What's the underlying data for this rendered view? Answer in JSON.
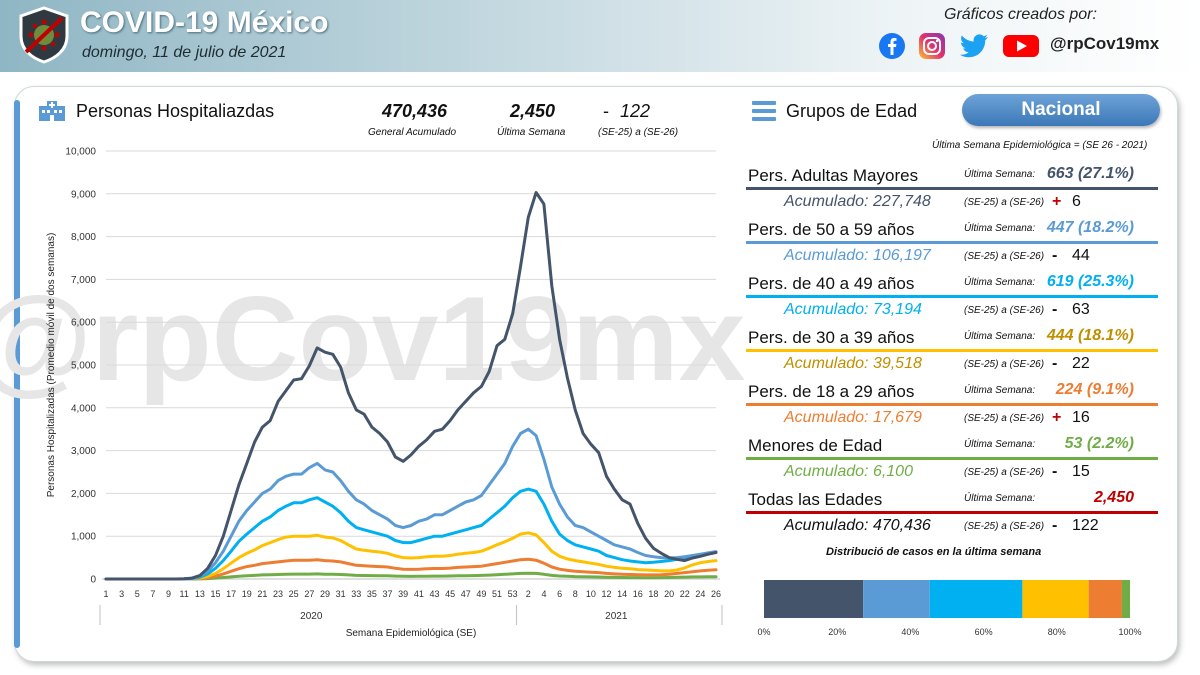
{
  "header": {
    "title": "COVID-19 México",
    "date": "domingo, 11 de julio de 2021",
    "credits_label": "Gráficos creados por:",
    "handle": "@rpCov19mx",
    "social_icons": [
      "facebook-icon",
      "instagram-icon",
      "twitter-icon",
      "youtube-icon"
    ]
  },
  "hospital_panel": {
    "title": "Personas Hospitaliazdas",
    "cumulative_value": "470,436",
    "cumulative_label": "General Acumulado",
    "last_week_value": "2,450",
    "last_week_label": "Última Semana",
    "change_dash": "-",
    "change_value": "122",
    "change_label": "(SE-25) a (SE-26)"
  },
  "groups_panel": {
    "title": "Grupos de Edad",
    "scope_button": "Nacional",
    "week_note": "Última Semana Epidemiológica = (SE 26 - 2021)",
    "distribution_title": "Distribució de casos en la última semana",
    "groups": [
      {
        "name": "Pers. Adultas Mayores",
        "last_week_label": "Última Semana:",
        "last_week": "663 (27.1%)",
        "accum": "Acumulado: 227,748",
        "compare_label": "(SE-25) a (SE-26)",
        "sign": "+",
        "diff": "6",
        "color": "#44546a",
        "text_color": "#44546a",
        "sign_color": "#c00000"
      },
      {
        "name": "Pers. de 50 a 59 años",
        "last_week_label": "Última Semana:",
        "last_week": "447 (18.2%)",
        "accum": "Acumulado: 106,197",
        "compare_label": "(SE-25) a (SE-26)",
        "sign": "-",
        "diff": "44",
        "color": "#5b9bd5",
        "text_color": "#5b9bd5",
        "sign_color": "#111111"
      },
      {
        "name": "Pers. de 40 a 49 años",
        "last_week_label": "Última Semana:",
        "last_week": "619 (25.3%)",
        "accum": "Acumulado: 73,194",
        "compare_label": "(SE-25) a (SE-26)",
        "sign": "-",
        "diff": "63",
        "color": "#00b0f0",
        "text_color": "#00b0f0",
        "sign_color": "#111111"
      },
      {
        "name": "Pers. de 30 a 39 años",
        "last_week_label": "Última Semana:",
        "last_week": "444 (18.1%)",
        "accum": "Acumulado: 39,518",
        "compare_label": "(SE-25) a (SE-26)",
        "sign": "-",
        "diff": "22",
        "color": "#ffc000",
        "text_color": "#bf8f00",
        "sign_color": "#111111"
      },
      {
        "name": "Pers. de 18 a 29 años",
        "last_week_label": "Última Semana:",
        "last_week": "224 (9.1%)",
        "accum": "Acumulado: 17,679",
        "compare_label": "(SE-25) a (SE-26)",
        "sign": "+",
        "diff": "16",
        "color": "#ed7d31",
        "text_color": "#ed7d31",
        "sign_color": "#c00000"
      },
      {
        "name": "Menores de Edad",
        "last_week_label": "Última Semana:",
        "last_week": "53 (2.2%)",
        "accum": "Acumulado: 6,100",
        "compare_label": "(SE-25) a (SE-26)",
        "sign": "-",
        "diff": "15",
        "color": "#70ad47",
        "text_color": "#70ad47",
        "sign_color": "#111111"
      },
      {
        "name": "Todas las Edades",
        "last_week_label": "Última Semana:",
        "last_week": "2,450",
        "accum": "Acumulado: 470,436",
        "compare_label": "(SE-25) a (SE-26)",
        "sign": "-",
        "diff": "122",
        "color": "#c00000",
        "text_color": "#c00000",
        "sign_color": "#111111"
      }
    ]
  },
  "watermark": "@rpCov19mx",
  "chart_data": [
    {
      "type": "line",
      "title": "",
      "xlabel": "Semana Epidemiológica (SE)",
      "ylabel": "Personas Hospitalizadas (Promedio móvil de dos semanas)",
      "ylim": [
        0,
        10000
      ],
      "yticks": [
        0,
        1000,
        2000,
        3000,
        4000,
        5000,
        6000,
        7000,
        8000,
        9000,
        10000
      ],
      "ytick_labels": [
        "0",
        "1,000",
        "2,000",
        "3,000",
        "4,000",
        "5,000",
        "6,000",
        "7,000",
        "8,000",
        "9,000",
        "10,000"
      ],
      "year_groups": [
        {
          "label": "2020",
          "weeks": 53
        },
        {
          "label": "2021",
          "weeks": 26
        }
      ],
      "tick_labels": [
        "1",
        "3",
        "5",
        "7",
        "9",
        "11",
        "13",
        "15",
        "17",
        "19",
        "21",
        "23",
        "25",
        "27",
        "29",
        "31",
        "33",
        "35",
        "37",
        "39",
        "41",
        "43",
        "45",
        "47",
        "49",
        "51",
        "53",
        "2",
        "4",
        "6",
        "8",
        "10",
        "12",
        "14",
        "16",
        "18",
        "20",
        "22",
        "24",
        "26"
      ],
      "grid": true,
      "legend": "none",
      "series": [
        {
          "color": "#44546a",
          "values": [
            0,
            0,
            0,
            0,
            0,
            0,
            0,
            0,
            0,
            0,
            5,
            20,
            80,
            250,
            550,
            1000,
            1600,
            2200,
            2700,
            3200,
            3550,
            3700,
            4150,
            4400,
            4650,
            4680,
            4980,
            5400,
            5300,
            5250,
            4950,
            4350,
            3950,
            3850,
            3550,
            3400,
            3200,
            2850,
            2750,
            2900,
            3100,
            3250,
            3450,
            3500,
            3700,
            3950,
            4150,
            4350,
            4500,
            4850,
            5450,
            5600,
            6200,
            7300,
            8450,
            9030,
            8760,
            6850,
            5600,
            4700,
            3950,
            3400,
            3150,
            2950,
            2400,
            2100,
            1850,
            1750,
            1300,
            950,
            720,
            600,
            500,
            460,
            430,
            490,
            530,
            580,
            620
          ]
        },
        {
          "color": "#5b9bd5",
          "values": [
            0,
            0,
            0,
            0,
            0,
            0,
            0,
            0,
            0,
            0,
            3,
            15,
            60,
            180,
            380,
            650,
            1000,
            1350,
            1600,
            1800,
            2000,
            2100,
            2300,
            2400,
            2450,
            2450,
            2600,
            2700,
            2550,
            2500,
            2300,
            2050,
            1850,
            1750,
            1600,
            1500,
            1400,
            1250,
            1200,
            1250,
            1350,
            1400,
            1500,
            1500,
            1600,
            1700,
            1800,
            1850,
            1950,
            2200,
            2450,
            2700,
            3100,
            3400,
            3500,
            3350,
            2800,
            2150,
            1750,
            1450,
            1250,
            1200,
            1100,
            1000,
            900,
            800,
            750,
            700,
            620,
            550,
            520,
            500,
            490,
            500,
            520,
            550,
            580,
            610,
            640
          ]
        },
        {
          "color": "#00b0f0",
          "values": [
            0,
            0,
            0,
            0,
            0,
            0,
            0,
            0,
            0,
            0,
            2,
            10,
            40,
            120,
            250,
            430,
            650,
            880,
            1050,
            1200,
            1350,
            1450,
            1600,
            1700,
            1780,
            1780,
            1850,
            1900,
            1800,
            1700,
            1550,
            1350,
            1200,
            1150,
            1100,
            1050,
            1000,
            900,
            850,
            850,
            900,
            950,
            1000,
            1000,
            1050,
            1100,
            1150,
            1200,
            1250,
            1400,
            1550,
            1700,
            1900,
            2050,
            2100,
            2050,
            1750,
            1350,
            1050,
            900,
            800,
            750,
            700,
            650,
            550,
            500,
            450,
            420,
            400,
            380,
            390,
            410,
            430,
            460,
            480,
            520,
            560,
            600,
            630
          ]
        },
        {
          "color": "#ffc000",
          "values": [
            0,
            0,
            0,
            0,
            0,
            0,
            0,
            0,
            0,
            0,
            1,
            5,
            20,
            60,
            130,
            240,
            370,
            500,
            600,
            680,
            780,
            850,
            920,
            980,
            1000,
            1000,
            1000,
            1020,
            980,
            960,
            900,
            800,
            700,
            670,
            650,
            630,
            600,
            540,
            500,
            490,
            500,
            520,
            530,
            530,
            550,
            580,
            600,
            620,
            650,
            720,
            800,
            870,
            950,
            1050,
            1080,
            1030,
            850,
            650,
            530,
            470,
            430,
            400,
            370,
            340,
            300,
            270,
            250,
            240,
            220,
            210,
            200,
            190,
            190,
            210,
            260,
            330,
            380,
            410,
            430
          ]
        },
        {
          "color": "#ed7d31",
          "values": [
            0,
            0,
            0,
            0,
            0,
            0,
            0,
            0,
            0,
            0,
            1,
            3,
            10,
            30,
            65,
            120,
            180,
            240,
            290,
            320,
            360,
            380,
            400,
            420,
            440,
            440,
            440,
            450,
            430,
            420,
            400,
            360,
            320,
            310,
            300,
            290,
            280,
            250,
            230,
            225,
            230,
            240,
            245,
            245,
            255,
            270,
            280,
            290,
            300,
            330,
            360,
            390,
            420,
            450,
            460,
            440,
            370,
            280,
            230,
            200,
            180,
            170,
            160,
            150,
            130,
            120,
            110,
            105,
            100,
            95,
            95,
            100,
            110,
            130,
            150,
            170,
            190,
            205,
            215
          ]
        },
        {
          "color": "#70ad47",
          "values": [
            0,
            0,
            0,
            0,
            0,
            0,
            0,
            0,
            0,
            0,
            0,
            1,
            3,
            10,
            20,
            35,
            50,
            65,
            75,
            85,
            95,
            100,
            105,
            110,
            115,
            115,
            115,
            118,
            112,
            110,
            105,
            95,
            85,
            82,
            80,
            78,
            75,
            68,
            62,
            60,
            62,
            65,
            67,
            67,
            70,
            75,
            78,
            80,
            83,
            90,
            100,
            110,
            120,
            130,
            135,
            130,
            110,
            85,
            70,
            62,
            56,
            53,
            50,
            47,
            42,
            38,
            35,
            33,
            32,
            30,
            30,
            32,
            35,
            40,
            44,
            48,
            50,
            52,
            53
          ]
        }
      ]
    },
    {
      "type": "bar",
      "title": "Distribució de casos en la última semana",
      "orientation": "horizontal-stacked",
      "categories": [
        "Pers. Adultas Mayores",
        "Pers. de 50 a 59 años",
        "Pers. de 40 a 49 años",
        "Pers. de 30 a 39 años",
        "Pers. de 18 a 29 años",
        "Menores de Edad"
      ],
      "values": [
        27.1,
        18.2,
        25.3,
        18.1,
        9.1,
        2.2
      ],
      "colors": [
        "#44546a",
        "#5b9bd5",
        "#00b0f0",
        "#ffc000",
        "#ed7d31",
        "#70ad47"
      ],
      "xlim": [
        0,
        100
      ],
      "tick_labels": [
        "0%",
        "20%",
        "40%",
        "60%",
        "80%",
        "100%"
      ]
    }
  ]
}
